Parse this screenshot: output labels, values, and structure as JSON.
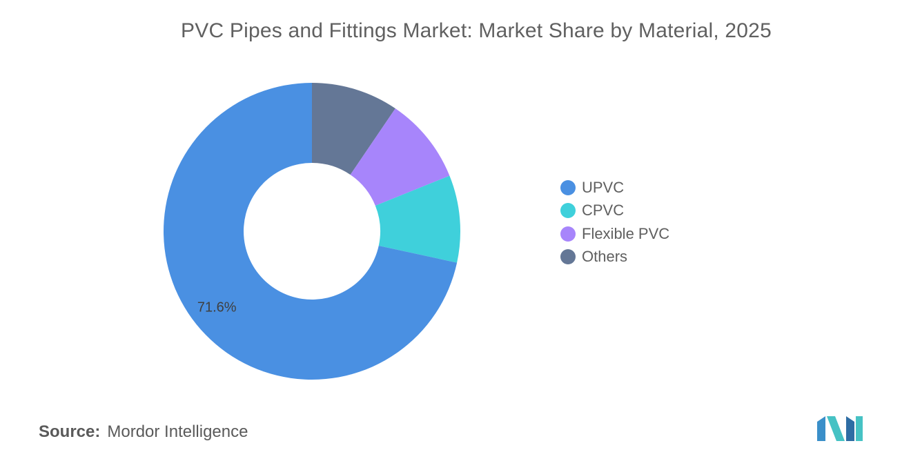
{
  "title": "PVC Pipes and Fittings Market: Market Share by Material, 2025",
  "source": {
    "label": "Source:",
    "name": "Mordor Intelligence"
  },
  "logo": {
    "name": "mordor-intelligence-logo",
    "colors": [
      "#3a8fc9",
      "#46c2c4",
      "#2e6da4"
    ]
  },
  "chart_data": {
    "type": "pie",
    "donut": true,
    "categories": [
      "UPVC",
      "CPVC",
      "Flexible PVC",
      "Others"
    ],
    "values": [
      71.6,
      9.5,
      9.4,
      9.5
    ],
    "colors": [
      "#4a90e2",
      "#3fd0db",
      "#a785fb",
      "#647796"
    ],
    "data_labels": [
      "71.6%",
      "",
      "",
      ""
    ],
    "legend_position": "right"
  }
}
